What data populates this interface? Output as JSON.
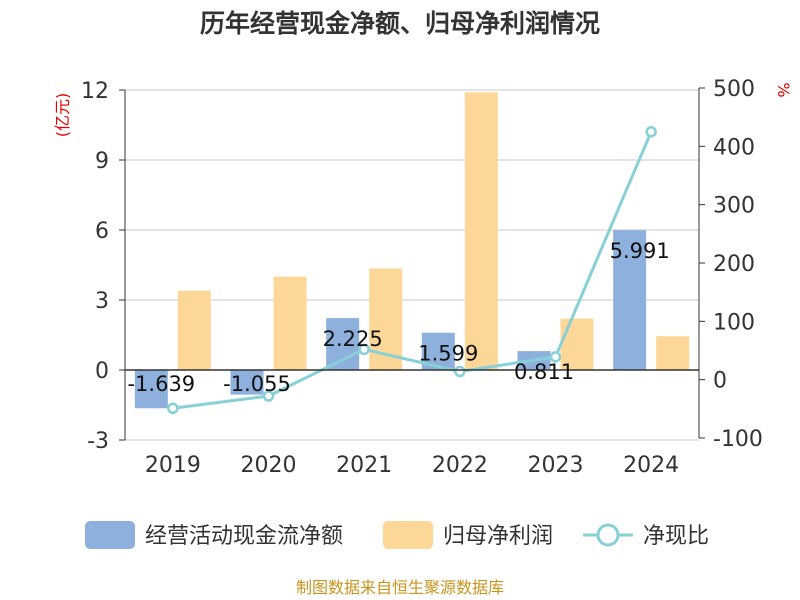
{
  "title": "历年经营现金净额、归母净利润情况",
  "source": "制图数据来自恒生聚源数据库",
  "units": {
    "left": "(亿元)",
    "right": "%"
  },
  "colors": {
    "cash": "#8eb0dc",
    "profit": "#fcd798",
    "ratio": "#86d0d6",
    "unit": "#e60000",
    "source": "#c8941e"
  },
  "legend": {
    "cash": "经营活动现金流净额",
    "profit": "归母净利润",
    "ratio": "净现比"
  },
  "chart_data": {
    "type": "bar",
    "categories": [
      "2019",
      "2020",
      "2021",
      "2022",
      "2023",
      "2024"
    ],
    "series": [
      {
        "name": "经营活动现金流净额",
        "type": "bar",
        "axis": "left",
        "values": [
          -1.639,
          -1.055,
          2.225,
          1.599,
          0.811,
          5.991
        ],
        "labels": [
          "-1.639",
          "-1.055",
          "2.225",
          "1.599",
          "0.811",
          "5.991"
        ]
      },
      {
        "name": "归母净利润",
        "type": "bar",
        "axis": "left",
        "values": [
          3.4,
          4.0,
          4.35,
          11.9,
          2.2,
          1.45
        ]
      },
      {
        "name": "净现比",
        "type": "line",
        "axis": "right",
        "values": [
          -49,
          -28,
          52,
          14,
          39,
          425
        ]
      }
    ],
    "y_left": {
      "min": -3,
      "max": 12,
      "ticks": [
        "12",
        "9",
        "6",
        "3",
        "0",
        "-3"
      ]
    },
    "y_right": {
      "min": -100,
      "max": 500,
      "ticks": [
        "500",
        "400",
        "300",
        "200",
        "100",
        "0",
        "-100"
      ]
    },
    "grid": true,
    "legend_position": "bottom"
  }
}
